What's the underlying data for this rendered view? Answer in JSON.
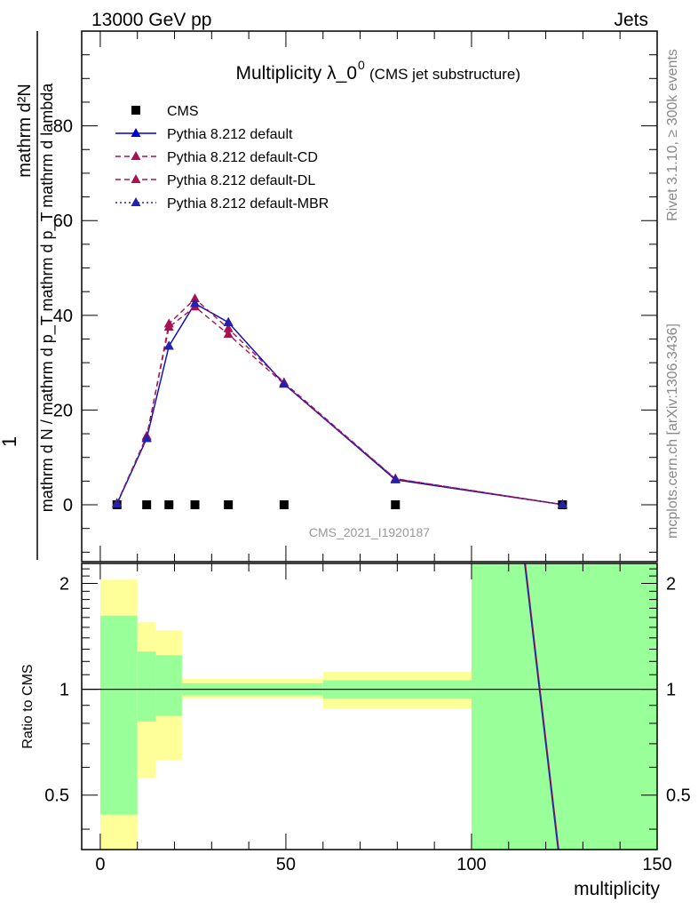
{
  "header": {
    "left": "13000 GeV pp",
    "right": "Jets"
  },
  "side_labels": {
    "rivet": "Rivet 3.1.10, ≥ 300k events",
    "mcplots": "mcplots.cern.ch [arXiv:1306.3436]"
  },
  "watermark": "CMS_2021_I1920187",
  "chart_data": [
    {
      "type": "line",
      "title": "Multiplicity λ_0",
      "title_sup": "0",
      "subtitle": "(CMS jet substructure)",
      "ylabel_numerator": "mathrm d²N",
      "ylabel_denominator": "mathrm d N / mathrm d p_T mathrm d p_T mathrm d lambda",
      "ylabel_one": "1",
      "xlim": [
        -5,
        150
      ],
      "ylim": [
        -12,
        100
      ],
      "yticks": [
        0,
        20,
        40,
        60,
        80
      ],
      "series": [
        {
          "name": "CMS",
          "style": "marker",
          "color": "#000000",
          "x": [
            4.5,
            12.5,
            18.5,
            25.5,
            34.5,
            49.5,
            79.5,
            124.5
          ],
          "y": [
            0,
            0,
            0,
            0,
            0,
            0,
            0,
            0
          ]
        },
        {
          "name": "Pythia 8.212 default",
          "style": "solid",
          "color": "#0000cc",
          "x": [
            4.5,
            12.5,
            18.5,
            25.5,
            34.5,
            49.5,
            79.5,
            124.5
          ],
          "y": [
            0.2,
            14.0,
            33.5,
            42.5,
            38.5,
            25.5,
            5.3,
            0.05
          ]
        },
        {
          "name": "Pythia 8.212 default-CD",
          "style": "dashed",
          "color": "#aa1155",
          "x": [
            4.5,
            12.5,
            18.5,
            25.5,
            34.5,
            49.5,
            79.5,
            124.5
          ],
          "y": [
            0.3,
            14.5,
            37.5,
            41.8,
            36.0,
            25.5,
            5.5,
            0.05
          ]
        },
        {
          "name": "Pythia 8.212 default-DL",
          "style": "dashed",
          "color": "#aa1155",
          "x": [
            4.5,
            12.5,
            18.5,
            25.5,
            34.5,
            49.5,
            79.5,
            124.5
          ],
          "y": [
            0.3,
            14.2,
            38.2,
            43.5,
            37.2,
            25.8,
            5.5,
            0.05
          ]
        },
        {
          "name": "Pythia 8.212 default-MBR",
          "style": "dotted",
          "color": "#2222aa",
          "x": [
            4.5,
            12.5,
            18.5,
            25.5,
            34.5,
            49.5,
            79.5,
            124.5
          ],
          "y": [
            0.2,
            14.0,
            33.5,
            42.5,
            38.5,
            25.5,
            5.3,
            0.05
          ]
        }
      ]
    },
    {
      "type": "area",
      "ylabel": "Ratio to CMS",
      "xlabel": "multiplicity",
      "xlim": [
        -5,
        150
      ],
      "ylim": [
        0.35,
        2.28
      ],
      "xticks": [
        0,
        50,
        100,
        150
      ],
      "yticks": [
        0.5,
        1,
        2
      ],
      "ytick_labels": [
        "0.5",
        "1",
        "2"
      ],
      "reference_line": 1,
      "bands": [
        {
          "x0": 0,
          "x1": 10,
          "inner": [
            0.44,
            1.62
          ],
          "outer": [
            0.35,
            2.05
          ]
        },
        {
          "x0": 10,
          "x1": 15,
          "inner": [
            0.81,
            1.28
          ],
          "outer": [
            0.56,
            1.55
          ]
        },
        {
          "x0": 15,
          "x1": 22,
          "inner": [
            0.84,
            1.25
          ],
          "outer": [
            0.63,
            1.47
          ]
        },
        {
          "x0": 22,
          "x1": 60,
          "inner": [
            0.96,
            1.04
          ],
          "outer": [
            0.94,
            1.07
          ]
        },
        {
          "x0": 60,
          "x1": 100,
          "inner": [
            0.94,
            1.06
          ],
          "outer": [
            0.88,
            1.12
          ]
        },
        {
          "x0": 100,
          "x1": 150,
          "inner": [
            0.35,
            2.28
          ],
          "outer": [
            0.35,
            2.28
          ]
        }
      ],
      "series": [
        {
          "name": "Pythia 8.212 default-CD ratio",
          "color": "#aa1155",
          "x": [
            114.5,
            123.5
          ],
          "y": [
            2.28,
            0.35
          ]
        },
        {
          "name": "Pythia 8.212 default-MBR ratio",
          "color": "#2222aa",
          "x": [
            114.3,
            123.3
          ],
          "y": [
            2.28,
            0.35
          ]
        }
      ]
    }
  ]
}
